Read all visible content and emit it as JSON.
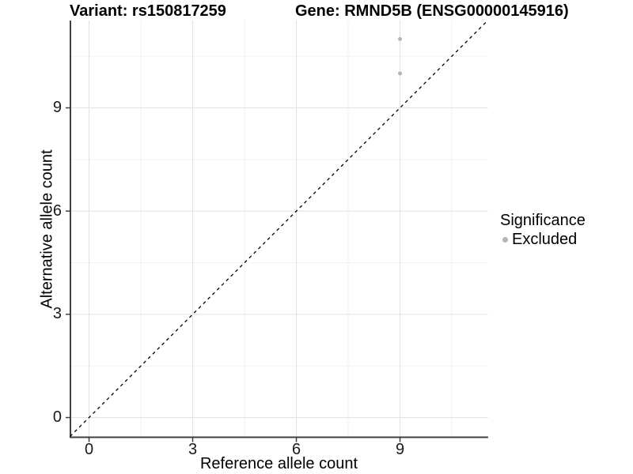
{
  "header": {
    "variant_title": "Variant: rs150817259",
    "gene_title": "Gene: RMND5B (ENSG00000145916)"
  },
  "axes": {
    "x_label": "Reference allele count",
    "y_label": "Alternative allele count"
  },
  "legend": {
    "title": "Significance",
    "position": "right",
    "items": [
      {
        "label": "Excluded",
        "marker": "dot-icon",
        "marker_color": "#b5b5b5"
      }
    ]
  },
  "chart_data": {
    "type": "scatter",
    "title_left": "Variant: rs150817259",
    "title_right": "Gene: RMND5B (ENSG00000145916)",
    "xlabel": "Reference allele count",
    "ylabel": "Alternative allele count",
    "xlim": [
      -0.55,
      11.55
    ],
    "ylim": [
      -0.55,
      11.55
    ],
    "x_ticks": [
      0,
      3,
      6,
      9
    ],
    "y_ticks": [
      0,
      3,
      6,
      9
    ],
    "x_minor_gridlines": [
      1.5,
      4.5,
      7.5,
      10.5
    ],
    "y_minor_gridlines": [
      1.5,
      4.5,
      7.5,
      10.5
    ],
    "grid": "major+minor",
    "legend_position": "right",
    "series": [
      {
        "name": "Excluded",
        "color": "#b5b5b5",
        "points": [
          {
            "x": 9,
            "y": 10
          },
          {
            "x": 9,
            "y": 11
          }
        ]
      }
    ],
    "reference_line": {
      "kind": "identity y=x",
      "style": "dashed",
      "color": "#000000"
    },
    "style": {
      "background": "#ffffff",
      "major_grid_color": "#e3e3e3",
      "minor_grid_color": "#f0f0f0",
      "axis_line_color": "#404040",
      "tick_color": "#404040",
      "point_radius_px": 2.5
    }
  }
}
